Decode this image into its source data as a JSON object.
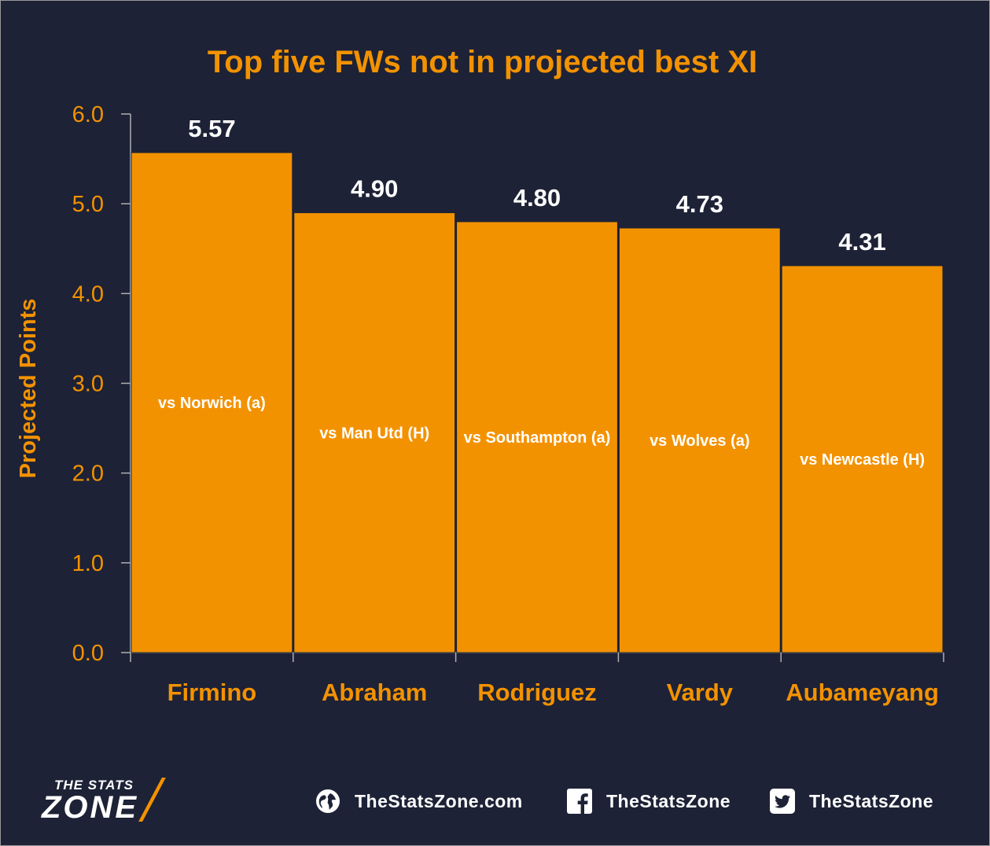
{
  "chart_data": {
    "type": "bar",
    "title": "Top five FWs not in projected best XI",
    "ylabel": "Projected Points",
    "xlabel": "",
    "ylim": [
      0,
      6
    ],
    "yticks": [
      "0.0",
      "1.0",
      "2.0",
      "3.0",
      "4.0",
      "5.0",
      "6.0"
    ],
    "categories": [
      "Firmino",
      "Abraham",
      "Rodriguez",
      "Vardy",
      "Aubameyang"
    ],
    "values": [
      5.57,
      4.9,
      4.8,
      4.73,
      4.31
    ],
    "value_labels": [
      "5.57",
      "4.90",
      "4.80",
      "4.73",
      "4.31"
    ],
    "fixtures": [
      "vs Norwich (a)",
      "vs Man Utd (H)",
      "vs Southampton (a)",
      "vs Wolves (a)",
      "vs Newcastle (H)"
    ],
    "grid": false,
    "legend": "none",
    "colors": {
      "bar": "#f39200",
      "background": "#1d2236",
      "text_accent": "#f39200",
      "text_light": "#ffffff",
      "axis": "#b0b0b0"
    }
  },
  "footer": {
    "logo_top": "THE STATS",
    "logo_main": "ZONE",
    "website": "TheStatsZone.com",
    "facebook": "TheStatsZone",
    "twitter": "TheStatsZone",
    "icons": [
      "globe-icon",
      "facebook-icon",
      "twitter-icon"
    ]
  }
}
